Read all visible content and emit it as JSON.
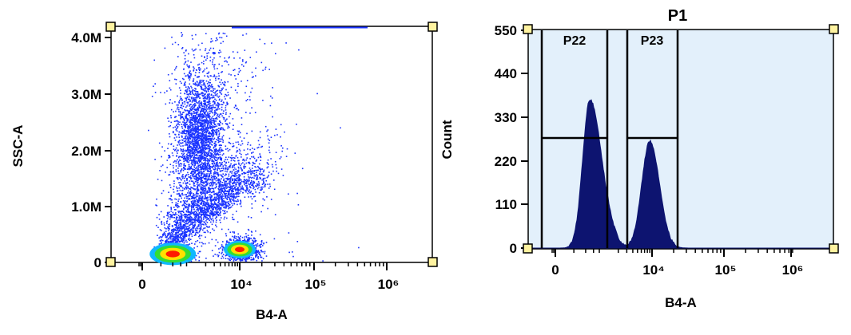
{
  "colors": {
    "axis": "#000000",
    "histogram_fill": "#0d1470",
    "histogram_bg": "#e3f0fb",
    "scatter_point": "#1a33ff",
    "handle_fill": "#fff3a0",
    "density_high": "#ff1a00",
    "density_mid_high": "#ffe000",
    "density_mid": "#33dd33",
    "density_low": "#10b8ff"
  },
  "chart_data": [
    {
      "type": "scatter",
      "xlabel": "B4-A",
      "ylabel": "SSC-A",
      "x_scale": "biexponential",
      "x_tick_labels": [
        "0",
        "10⁴",
        "10⁵",
        "10⁶"
      ],
      "y_tick_labels": [
        "0",
        "1.0M",
        "2.0M",
        "3.0M",
        "4.0M"
      ],
      "ylim": [
        0,
        4200000
      ],
      "clusters": [
        {
          "name": "",
          "x_center": 400,
          "y_center": 150000,
          "density": "high"
        },
        {
          "name": "",
          "x_center": 10000,
          "y_center": 230000,
          "density": "high"
        },
        {
          "name": "",
          "x_center": 1500,
          "y_center": 2200000,
          "density": "low"
        }
      ]
    },
    {
      "type": "histogram",
      "title": "P1",
      "xlabel": "B4-A",
      "ylabel": "Count",
      "x_scale": "biexponential",
      "x_tick_labels": [
        "0",
        "10⁴",
        "10⁵",
        "10⁶"
      ],
      "y_tick_labels": [
        "0",
        "110",
        "220",
        "330",
        "440",
        "550"
      ],
      "ylim": [
        0,
        550
      ],
      "peaks": [
        {
          "x": 500,
          "count": 375
        },
        {
          "x": 9000,
          "count": 270
        }
      ],
      "gates": [
        {
          "name": "P22",
          "x_range": [
            -300,
            2500
          ],
          "y_level": 275
        },
        {
          "name": "P23",
          "x_range": [
            4000,
            25000
          ],
          "y_level": 275
        }
      ]
    }
  ]
}
